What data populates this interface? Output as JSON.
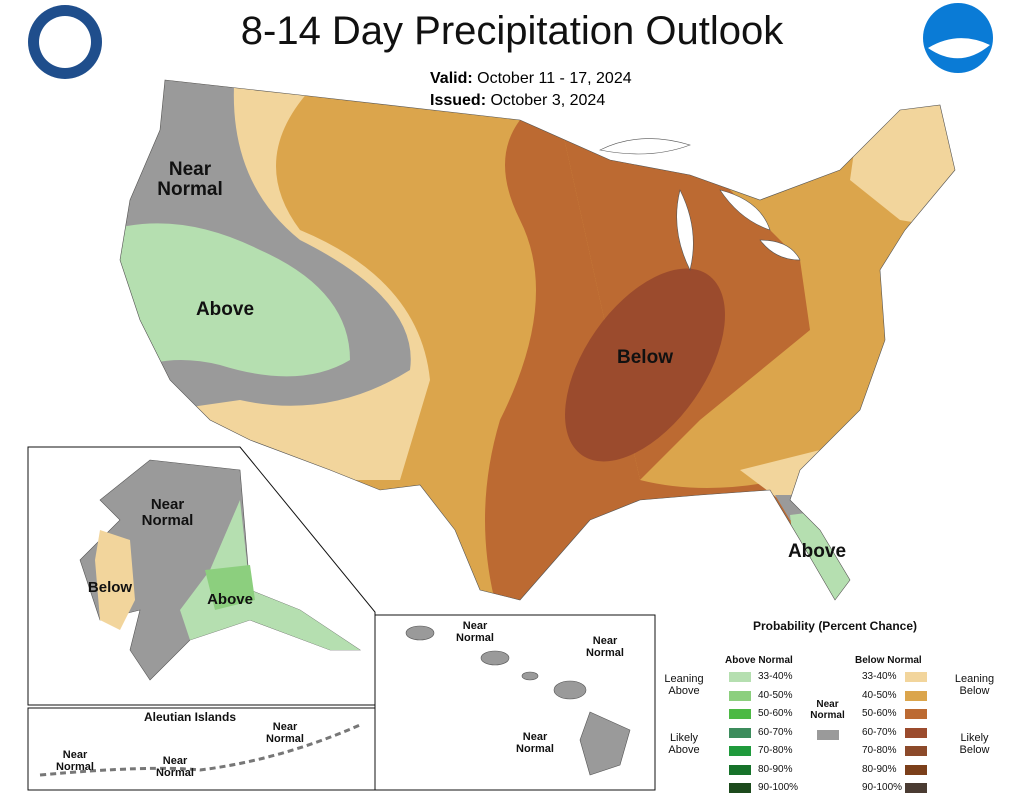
{
  "header": {
    "title": "8-14 Day Precipitation Outlook",
    "valid_label": "Valid:",
    "valid_dates": "October 11 - 17, 2024",
    "issued_label": "Issued:",
    "issued_date": "October 3, 2024"
  },
  "map_labels": {
    "conus": [
      "Near Normal",
      "Above",
      "Below",
      "Above"
    ],
    "alaska": [
      "Near Normal",
      "Below",
      "Above"
    ],
    "aleutians": {
      "title": "Aleutian Islands",
      "labels": [
        "Near Normal",
        "Near Normal",
        "Near Normal"
      ]
    },
    "hawaii": [
      "Near Normal",
      "Near Normal",
      "Near Normal"
    ]
  },
  "legend": {
    "title": "Probability (Percent Chance)",
    "above_header": "Above Normal",
    "below_header": "Below Normal",
    "near": "Near Normal",
    "near_color": "#9a9a9a",
    "above_groups": [
      "Leaning Above",
      "Likely Above"
    ],
    "below_groups": [
      "Leaning Below",
      "Likely Below"
    ],
    "above_items": [
      {
        "range": "33-40%",
        "color": "#b5dfb0"
      },
      {
        "range": "40-50%",
        "color": "#8ccf7e"
      },
      {
        "range": "50-60%",
        "color": "#4cb944"
      },
      {
        "range": "60-70%",
        "color": "#3c8c5c"
      },
      {
        "range": "70-80%",
        "color": "#1f9a3c"
      },
      {
        "range": "80-90%",
        "color": "#16722a"
      },
      {
        "range": "90-100%",
        "color": "#1c4a1c"
      }
    ],
    "below_items": [
      {
        "range": "33-40%",
        "color": "#f2d59c"
      },
      {
        "range": "40-50%",
        "color": "#dba54c"
      },
      {
        "range": "50-60%",
        "color": "#bc6a32"
      },
      {
        "range": "60-70%",
        "color": "#9b4b2d"
      },
      {
        "range": "70-80%",
        "color": "#8c4a2a"
      },
      {
        "range": "80-90%",
        "color": "#7b3f1a"
      },
      {
        "range": "90-100%",
        "color": "#4a3b32"
      }
    ]
  }
}
